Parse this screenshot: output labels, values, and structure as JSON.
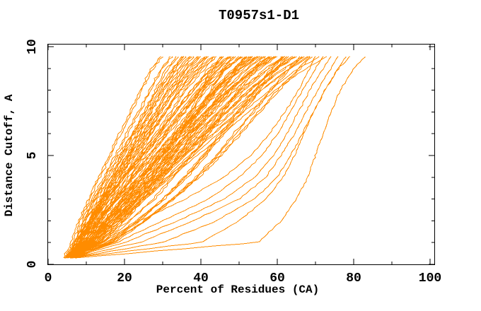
{
  "chart_data": {
    "type": "line",
    "title": "T0957s1-D1",
    "xlabel": "Percent of Residues (CA)",
    "ylabel": "Distance Cutoff, A",
    "xlim": [
      0,
      101
    ],
    "ylim": [
      0,
      10.15
    ],
    "x_major_ticks": [
      0,
      20,
      40,
      60,
      80,
      100
    ],
    "x_minor_ticks": [
      10,
      30,
      50,
      70,
      90
    ],
    "y_major_ticks": [
      0,
      5,
      10
    ],
    "y_minor_ticks": [
      1,
      2,
      3,
      4,
      6,
      7,
      8,
      9
    ],
    "grid": false,
    "legend": "none",
    "series_color": "#FF8C00",
    "axis_color": "#000000",
    "background_color": "#FFFFFF",
    "y_levels": [
      0.3,
      1,
      2,
      3,
      4,
      5,
      6,
      7,
      8,
      9,
      9.55
    ],
    "curves_percent_at_y": [
      [
        4.5,
        6.5,
        8.5,
        11,
        13.5,
        16.5,
        19,
        22,
        24.5,
        27.5,
        30
      ],
      [
        4.5,
        7,
        9,
        11.5,
        14.5,
        17.5,
        20.5,
        23.5,
        26.5,
        29.5,
        32
      ],
      [
        5,
        8,
        11,
        14,
        17,
        19.5,
        22.5,
        25.5,
        28.5,
        31.5,
        34
      ],
      [
        5,
        7,
        9.5,
        12,
        15,
        18.5,
        22,
        25.5,
        28.5,
        32.5,
        35
      ],
      [
        5,
        8,
        11,
        14.5,
        17.5,
        21,
        24,
        27,
        30,
        33.5,
        36
      ],
      [
        5,
        7,
        9.5,
        12.5,
        16,
        19.5,
        23,
        26.5,
        30,
        34,
        37
      ],
      [
        5,
        8.5,
        11.5,
        15,
        18.5,
        21.5,
        25,
        28.5,
        31.5,
        35.5,
        38
      ],
      [
        6,
        8,
        10.5,
        13.5,
        17,
        20.5,
        24,
        28,
        31.5,
        36,
        39
      ],
      [
        5,
        8.5,
        12,
        15.5,
        19,
        22.5,
        26,
        29.5,
        33,
        37,
        40
      ],
      [
        6,
        8,
        11,
        14,
        17.5,
        21.5,
        25.5,
        29,
        33,
        37.5,
        41
      ],
      [
        5,
        9,
        12.5,
        16,
        20,
        23.5,
        27,
        31,
        34.5,
        39,
        42
      ],
      [
        6,
        8,
        11,
        14.5,
        18,
        22.5,
        26.5,
        30.5,
        34.5,
        39.5,
        43
      ],
      [
        5,
        9,
        13,
        17,
        20.5,
        24.5,
        28.5,
        32.5,
        36,
        41,
        44
      ],
      [
        6,
        13,
        18.5,
        23,
        27,
        30.5,
        34,
        37,
        40,
        43,
        45
      ],
      [
        5,
        9,
        13,
        17.5,
        21.5,
        25.5,
        29.5,
        33.5,
        38,
        42.5,
        46
      ],
      [
        6,
        8.5,
        11.5,
        15.5,
        19.5,
        24,
        28.5,
        33,
        37.5,
        43,
        47
      ],
      [
        5,
        9.5,
        13.5,
        18,
        22,
        26.5,
        31,
        35,
        39.5,
        44.5,
        48
      ],
      [
        6,
        13.5,
        19.5,
        24.5,
        28.5,
        32.5,
        36,
        39,
        42.5,
        46,
        48
      ],
      [
        5,
        9.5,
        14,
        18,
        22.5,
        27,
        31.5,
        36,
        40,
        45.5,
        49
      ],
      [
        6,
        10.5,
        15,
        19,
        23.5,
        28,
        32.5,
        37,
        41,
        46.5,
        50
      ],
      [
        5,
        8,
        11.5,
        15.5,
        20,
        25,
        30.5,
        35.5,
        40.5,
        46.5,
        51
      ],
      [
        6,
        10.5,
        15,
        20,
        24.5,
        29,
        33.5,
        38,
        43,
        48.5,
        52
      ],
      [
        5,
        13.5,
        20,
        25.5,
        30.5,
        34.5,
        38.5,
        42,
        46,
        49.5,
        52
      ],
      [
        6,
        10.5,
        15.5,
        20,
        25,
        29.5,
        34,
        39,
        43.5,
        49,
        53
      ],
      [
        5,
        10,
        15,
        19.5,
        24.5,
        29.5,
        34.5,
        39.5,
        44,
        50,
        54
      ],
      [
        6,
        9,
        13,
        17.5,
        22,
        27.5,
        33,
        38.5,
        43.5,
        50,
        55
      ],
      [
        5,
        10,
        15,
        20,
        25,
        30,
        35,
        40,
        45,
        51,
        55
      ],
      [
        6,
        11,
        16,
        21,
        26,
        31,
        36,
        41,
        46,
        52,
        56
      ],
      [
        5,
        14.5,
        21.5,
        28,
        33,
        38,
        42,
        46,
        50,
        54.5,
        57
      ],
      [
        6,
        11,
        16.5,
        21.5,
        27,
        32,
        37,
        42.5,
        47.5,
        54,
        58
      ],
      [
        5,
        10.5,
        15.5,
        21,
        26,
        31.5,
        37,
        42,
        47.5,
        54,
        58
      ],
      [
        6,
        9,
        13.5,
        18,
        23.5,
        29.5,
        35,
        41,
        47,
        54,
        59
      ],
      [
        5,
        10.5,
        16,
        21.5,
        27,
        32.5,
        38,
        43.5,
        49,
        55.5,
        60
      ],
      [
        6,
        16,
        23.5,
        30,
        35.5,
        40.5,
        45,
        49.5,
        54,
        58.5,
        61
      ],
      [
        5,
        10.5,
        16.5,
        22,
        28,
        33.5,
        39,
        45,
        50.5,
        57.5,
        62
      ],
      [
        6,
        11.5,
        17,
        23,
        28.5,
        34,
        39.5,
        45,
        51,
        57.5,
        62
      ],
      [
        5,
        15.5,
        23.5,
        30.5,
        36.5,
        41.5,
        46,
        51,
        55.5,
        60,
        63
      ],
      [
        6,
        12,
        17.5,
        23.5,
        29,
        35,
        41,
        46.5,
        52.5,
        59.5,
        64
      ],
      [
        5,
        11,
        17,
        23,
        29,
        35,
        41,
        47,
        53,
        60,
        65
      ],
      [
        6,
        17,
        25,
        32.5,
        38.5,
        44,
        48.5,
        53.5,
        58,
        63,
        66
      ],
      [
        5,
        11,
        17.5,
        23.5,
        30,
        36,
        42,
        48.5,
        54.5,
        62,
        67
      ],
      [
        6,
        12,
        18.5,
        24.5,
        31,
        37,
        43,
        49.5,
        55.5,
        63,
        68
      ],
      [
        5,
        16.5,
        25.5,
        33,
        39.5,
        45.5,
        50.5,
        55.5,
        60.5,
        66,
        69
      ],
      [
        6,
        14,
        24,
        36,
        46,
        53,
        58,
        62,
        65.5,
        68.5,
        70
      ],
      [
        5,
        11.5,
        18,
        25,
        31.5,
        38,
        44.5,
        51,
        58,
        65.5,
        71
      ],
      [
        6,
        18,
        30,
        42,
        50,
        56,
        60,
        63.5,
        66.5,
        70,
        72
      ],
      [
        5,
        12,
        19,
        25.5,
        32,
        39,
        46,
        52.5,
        59.5,
        67.5,
        73
      ],
      [
        6,
        20,
        34,
        46,
        54,
        59,
        62.5,
        65.5,
        68.5,
        72,
        74
      ],
      [
        6,
        24,
        38,
        50,
        57,
        61,
        64.5,
        67.5,
        70.5,
        74,
        76
      ],
      [
        6,
        30,
        44,
        54,
        60,
        63.5,
        66.5,
        69.5,
        72.5,
        76,
        78
      ],
      [
        6,
        40,
        50,
        57,
        61.5,
        64.5,
        67,
        69.5,
        72.5,
        76,
        79
      ],
      [
        7,
        55,
        61,
        65,
        68,
        70,
        72,
        74,
        76.5,
        80,
        83
      ]
    ]
  }
}
